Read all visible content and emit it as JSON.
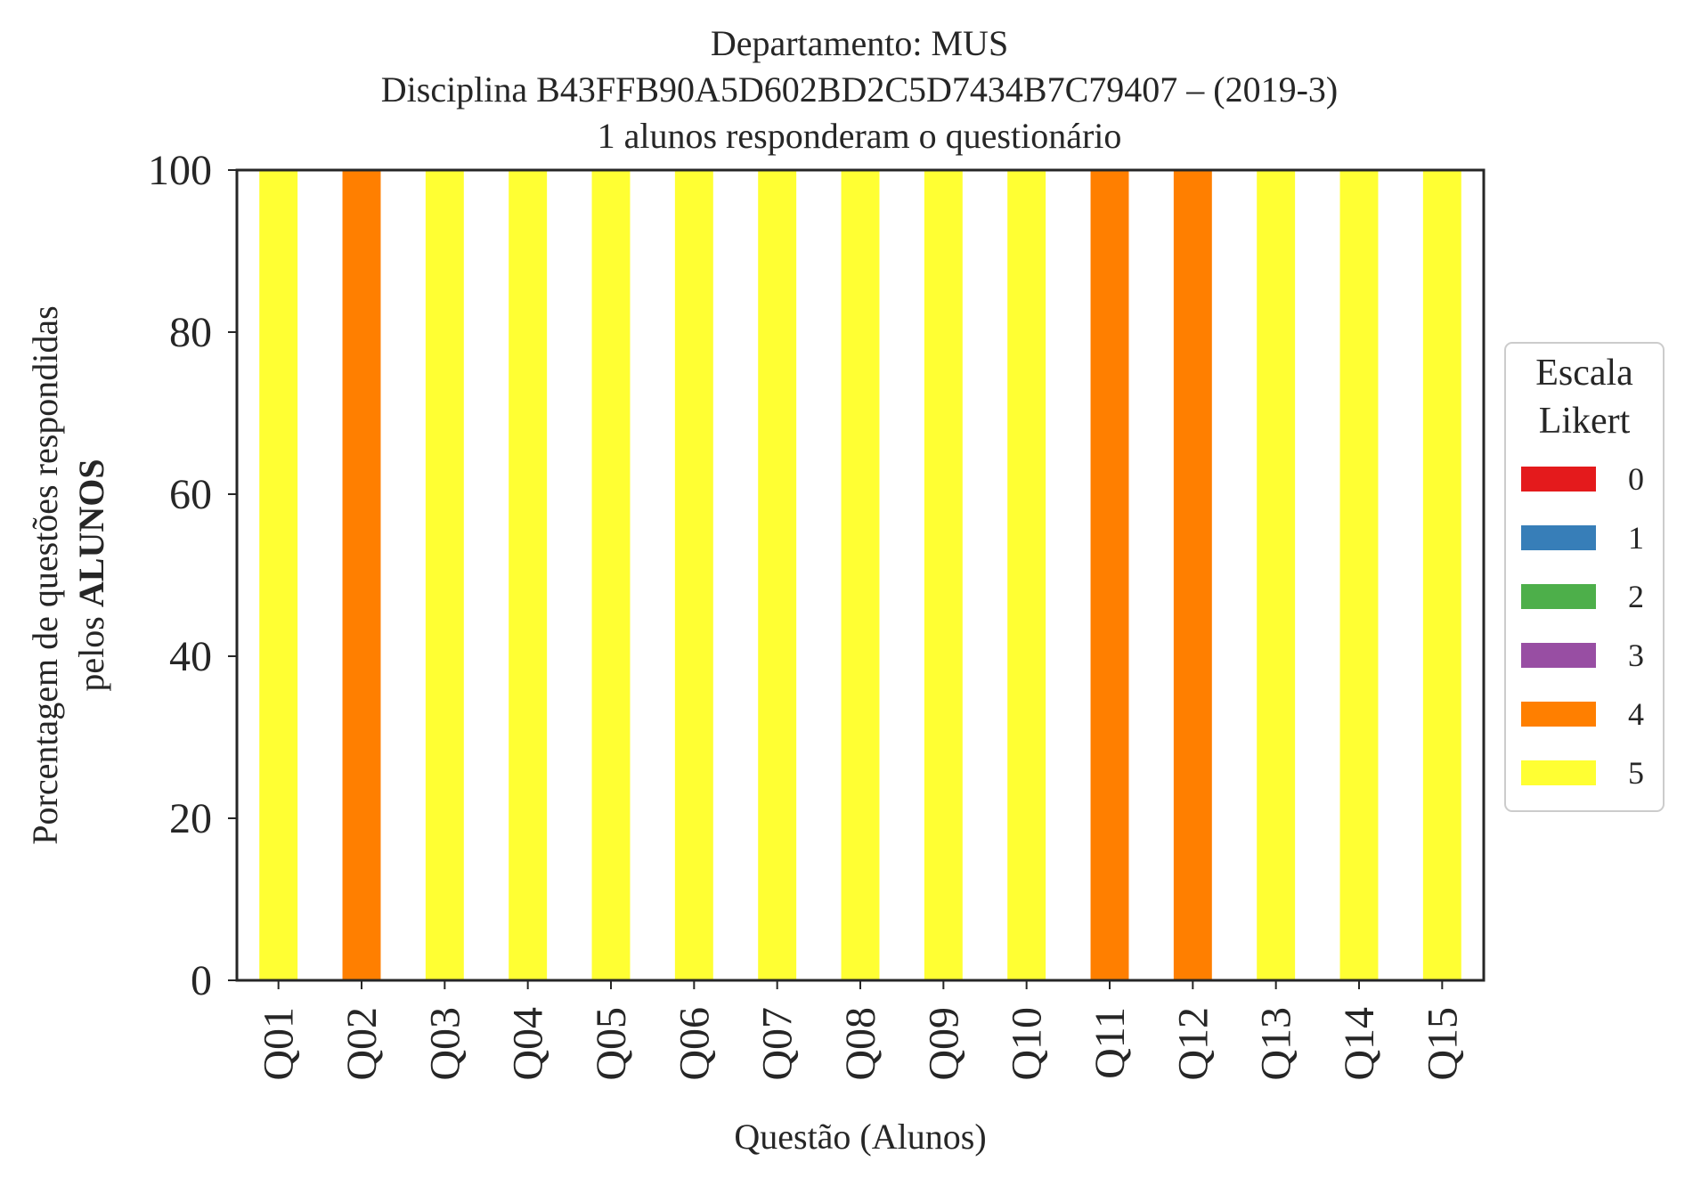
{
  "chart_data": {
    "type": "bar",
    "stacked": true,
    "title_lines": [
      "Departamento: MUS",
      "Disciplina B43FFB90A5D602BD2C5D7434B7C79407 – (2019-3)",
      "1 alunos responderam o questionário"
    ],
    "xlabel": "Questão (Alunos)",
    "ylabel_line1": "Porcentagem de questões respondidas",
    "ylabel_line2_prefix": "pelos ",
    "ylabel_line2_bold": "ALUNOS",
    "ylim": [
      0,
      100
    ],
    "yticks": [
      "0",
      "20",
      "40",
      "60",
      "80",
      "100"
    ],
    "grid": false,
    "categories": [
      "Q01",
      "Q02",
      "Q03",
      "Q04",
      "Q05",
      "Q06",
      "Q07",
      "Q08",
      "Q09",
      "Q10",
      "Q11",
      "Q12",
      "Q13",
      "Q14",
      "Q15"
    ],
    "series": [
      {
        "name": "0",
        "color": "#e41a1c",
        "values": [
          0,
          0,
          0,
          0,
          0,
          0,
          0,
          0,
          0,
          0,
          0,
          0,
          0,
          0,
          0
        ]
      },
      {
        "name": "1",
        "color": "#377eb8",
        "values": [
          0,
          0,
          0,
          0,
          0,
          0,
          0,
          0,
          0,
          0,
          0,
          0,
          0,
          0,
          0
        ]
      },
      {
        "name": "2",
        "color": "#4daf4a",
        "values": [
          0,
          0,
          0,
          0,
          0,
          0,
          0,
          0,
          0,
          0,
          0,
          0,
          0,
          0,
          0
        ]
      },
      {
        "name": "3",
        "color": "#984ea3",
        "values": [
          0,
          0,
          0,
          0,
          0,
          0,
          0,
          0,
          0,
          0,
          0,
          0,
          0,
          0,
          0
        ]
      },
      {
        "name": "4",
        "color": "#ff7f00",
        "values": [
          0,
          100,
          0,
          0,
          0,
          0,
          0,
          0,
          0,
          0,
          100,
          100,
          0,
          0,
          0
        ]
      },
      {
        "name": "5",
        "color": "#ffff33",
        "values": [
          100,
          0,
          100,
          100,
          100,
          100,
          100,
          100,
          100,
          100,
          0,
          0,
          100,
          100,
          100
        ]
      }
    ],
    "legend": {
      "title_lines": [
        "Escala",
        "Likert"
      ],
      "placement": "outside-right"
    }
  }
}
